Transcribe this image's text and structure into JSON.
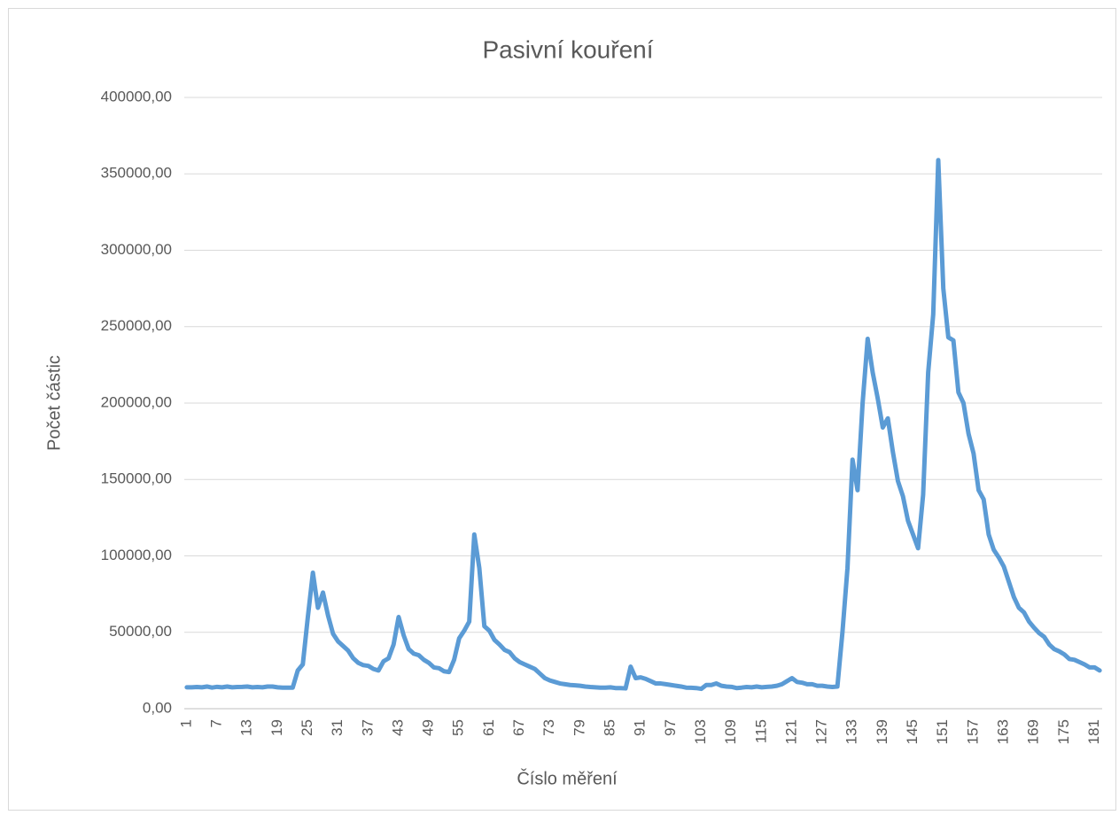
{
  "chart_data": {
    "type": "line",
    "title": "Pasivní kouření",
    "x_label": "Číslo měření",
    "y_label": "Počet částic",
    "categories": [
      "1",
      null,
      null,
      null,
      null,
      null,
      "7",
      null,
      null,
      null,
      null,
      null,
      "13",
      null,
      null,
      null,
      null,
      null,
      "19",
      null,
      null,
      null,
      null,
      null,
      "25",
      null,
      null,
      null,
      null,
      null,
      "31",
      null,
      null,
      null,
      null,
      null,
      "37",
      null,
      null,
      null,
      null,
      null,
      "43",
      null,
      null,
      null,
      null,
      null,
      "49",
      null,
      null,
      null,
      null,
      null,
      "55",
      null,
      null,
      null,
      null,
      null,
      "61",
      null,
      null,
      null,
      null,
      null,
      "67",
      null,
      null,
      null,
      null,
      null,
      "73",
      null,
      null,
      null,
      null,
      null,
      "79",
      null,
      null,
      null,
      null,
      null,
      "85",
      null,
      null,
      null,
      null,
      null,
      "91",
      null,
      null,
      null,
      null,
      null,
      "97",
      null,
      null,
      null,
      null,
      null,
      "103",
      null,
      null,
      null,
      null,
      null,
      "109",
      null,
      null,
      null,
      null,
      null,
      "115",
      null,
      null,
      null,
      null,
      null,
      "121",
      null,
      null,
      null,
      null,
      null,
      "127",
      null,
      null,
      null,
      null,
      null,
      "133",
      null,
      null,
      null,
      null,
      null,
      "139",
      null,
      null,
      null,
      null,
      null,
      "145",
      null,
      null,
      null,
      null,
      null,
      "151",
      null,
      null,
      null,
      null,
      null,
      "157",
      null,
      null,
      null,
      null,
      null,
      "163",
      null,
      null,
      null,
      null,
      null,
      "169",
      null,
      null,
      null,
      null,
      null,
      "175",
      null,
      null,
      null,
      null,
      null,
      "181",
      null
    ],
    "series": [
      {
        "name": "Počet částic",
        "color": "#5b9bd5",
        "values": [
          14000,
          14000,
          14200,
          14000,
          14500,
          13800,
          14300,
          14000,
          14500,
          14000,
          14200,
          14300,
          14500,
          14000,
          14200,
          14000,
          14500,
          14500,
          14000,
          13800,
          13800,
          13800,
          25000,
          29000,
          60000,
          89000,
          66000,
          76000,
          61000,
          49000,
          44000,
          41000,
          38000,
          33000,
          30000,
          28500,
          28000,
          26000,
          25000,
          31000,
          33000,
          42000,
          60000,
          48000,
          39000,
          36000,
          35000,
          32000,
          30000,
          27000,
          26500,
          24500,
          24000,
          32000,
          46000,
          51000,
          57000,
          114000,
          92000,
          54000,
          51000,
          45000,
          42000,
          38500,
          37000,
          33000,
          30500,
          29000,
          27500,
          26000,
          23000,
          20000,
          18500,
          17500,
          16500,
          16000,
          15500,
          15300,
          15000,
          14500,
          14200,
          14000,
          13800,
          13800,
          14000,
          13500,
          13500,
          13300,
          27500,
          20000,
          20500,
          19500,
          18000,
          16500,
          16500,
          16000,
          15500,
          15000,
          14500,
          13800,
          13700,
          13500,
          13000,
          15500,
          15500,
          16500,
          15000,
          14500,
          14300,
          13500,
          13800,
          14200,
          14000,
          14500,
          14000,
          14300,
          14500,
          15000,
          16000,
          18000,
          20000,
          17500,
          17000,
          16000,
          16000,
          15000,
          15000,
          14500,
          14200,
          14500,
          50000,
          92000,
          163000,
          143000,
          200000,
          242000,
          220000,
          203000,
          184000,
          190000,
          168000,
          149000,
          139000,
          123000,
          114000,
          105000,
          140000,
          220000,
          258000,
          359000,
          275000,
          243000,
          241000,
          207000,
          200000,
          180000,
          167000,
          143000,
          137000,
          114000,
          104000,
          99000,
          93000,
          83000,
          73000,
          66000,
          63000,
          57000,
          53000,
          49500,
          47000,
          42000,
          39000,
          37500,
          35500,
          32500,
          32000,
          30500,
          29000,
          27000,
          27000,
          25000
        ]
      }
    ],
    "ylim": [
      0,
      400000
    ],
    "yticks": [
      {
        "value": 0,
        "label": "0,00"
      },
      {
        "value": 50000,
        "label": "50000,00"
      },
      {
        "value": 100000,
        "label": "100000,00"
      },
      {
        "value": 150000,
        "label": "150000,00"
      },
      {
        "value": 200000,
        "label": "200000,00"
      },
      {
        "value": 250000,
        "label": "250000,00"
      },
      {
        "value": 300000,
        "label": "300000,00"
      },
      {
        "value": 350000,
        "label": "350000,00"
      },
      {
        "value": 400000,
        "label": "400000,00"
      }
    ],
    "grid": true
  }
}
